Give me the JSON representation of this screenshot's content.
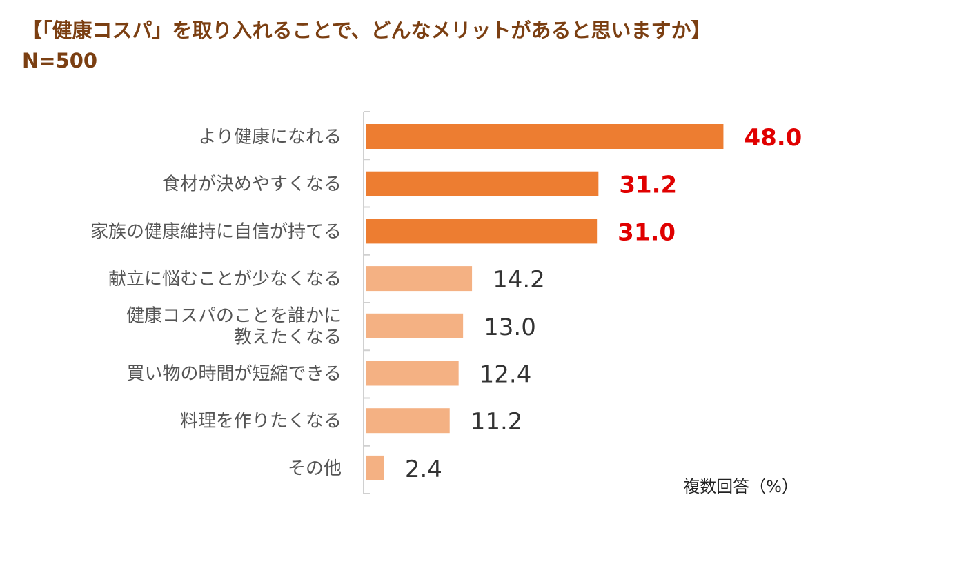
{
  "header": {
    "title": "【「健康コスパ」を取り入れることで、どんなメリットがあると思いますか】",
    "sample": "N=500"
  },
  "colors": {
    "title": "#7b3f12",
    "bar_top": "#ed7d31",
    "bar_rest": "#f4b183",
    "label_top": "#e00000",
    "label_rest": "#333333",
    "axis": "#d0d0d0"
  },
  "chart_data": {
    "type": "bar",
    "orientation": "horizontal",
    "categories": [
      [
        "より健康になれる"
      ],
      [
        "食材が決めやすくなる"
      ],
      [
        "家族の健康維持に自信が持てる"
      ],
      [
        "献立に悩むことが少なくなる"
      ],
      [
        "健康コスパのことを誰かに",
        "教えたくなる"
      ],
      [
        "買い物の時間が短縮できる"
      ],
      [
        "料理を作りたくなる"
      ],
      [
        "その他"
      ]
    ],
    "values": [
      48.0,
      31.2,
      31.0,
      14.2,
      13.0,
      12.4,
      11.2,
      2.4
    ],
    "value_labels": [
      "48.0",
      "31.2",
      "31.0",
      "14.2",
      "13.0",
      "12.4",
      "11.2",
      "2.4"
    ],
    "highlighted_top": 3,
    "note": "複数回答（%）",
    "xlim": [
      0,
      50
    ]
  }
}
